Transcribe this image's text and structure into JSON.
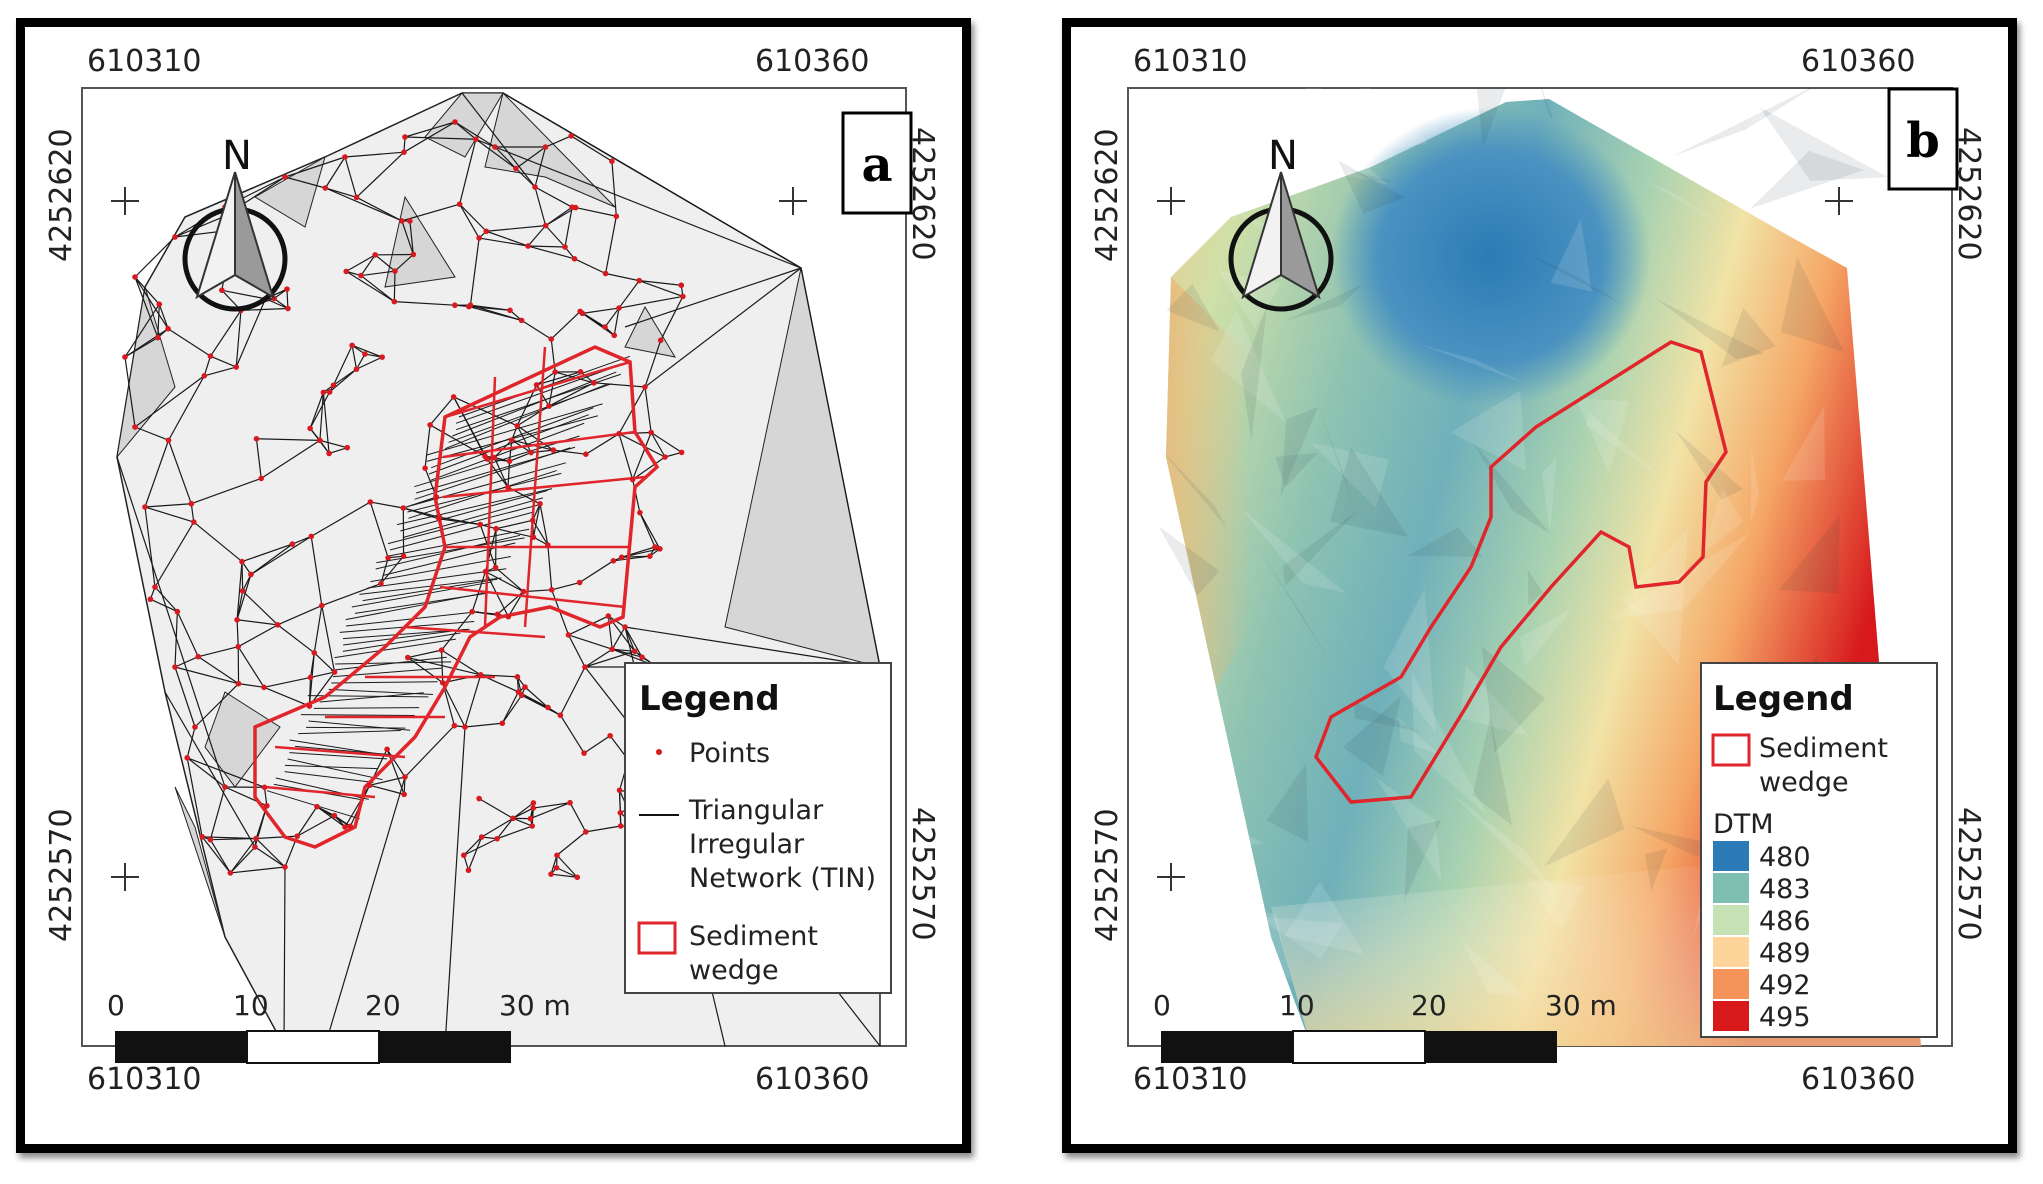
{
  "panels": {
    "a": {
      "letter": "a",
      "coords": {
        "top_left": "610310",
        "top_right": "610360",
        "bottom_left": "610310",
        "bottom_right": "610360",
        "left_upper": "4252620",
        "left_lower": "4252570",
        "right_upper": "4252620",
        "right_lower": "4252570"
      },
      "north": "N",
      "legend": {
        "title": "Legend",
        "points": "Points",
        "tin_line1": "Triangular",
        "tin_line2": "Irregular",
        "tin_line3": "Network (TIN)",
        "sediment_line1": "Sediment",
        "sediment_line2": "wedge"
      },
      "scale": {
        "t0": "0",
        "t10": "10",
        "t20": "20",
        "t30": "30 m"
      }
    },
    "b": {
      "letter": "b",
      "coords": {
        "top_left": "610310",
        "top_right": "610360",
        "bottom_left": "610310",
        "bottom_right": "610360",
        "left_upper": "4252620",
        "left_lower": "4252570",
        "right_upper": "4252620",
        "right_lower": "4252570"
      },
      "north": "N",
      "legend": {
        "title": "Legend",
        "sediment_line1": "Sediment",
        "sediment_line2": "wedge",
        "dtm_label": "DTM",
        "classes": [
          {
            "value": "480",
            "color": "#2c7bb6"
          },
          {
            "value": "483",
            "color": "#7fbfb2"
          },
          {
            "value": "486",
            "color": "#c6e2b4"
          },
          {
            "value": "489",
            "color": "#fdd59a"
          },
          {
            "value": "492",
            "color": "#f4945a"
          },
          {
            "value": "495",
            "color": "#d7191c"
          }
        ]
      },
      "scale": {
        "t0": "0",
        "t10": "10",
        "t20": "20",
        "t30": "30 m"
      }
    }
  },
  "colors": {
    "sediment_outline": "#e0252b",
    "points": "#d71920",
    "tin_lines": "#1a1a1a"
  }
}
